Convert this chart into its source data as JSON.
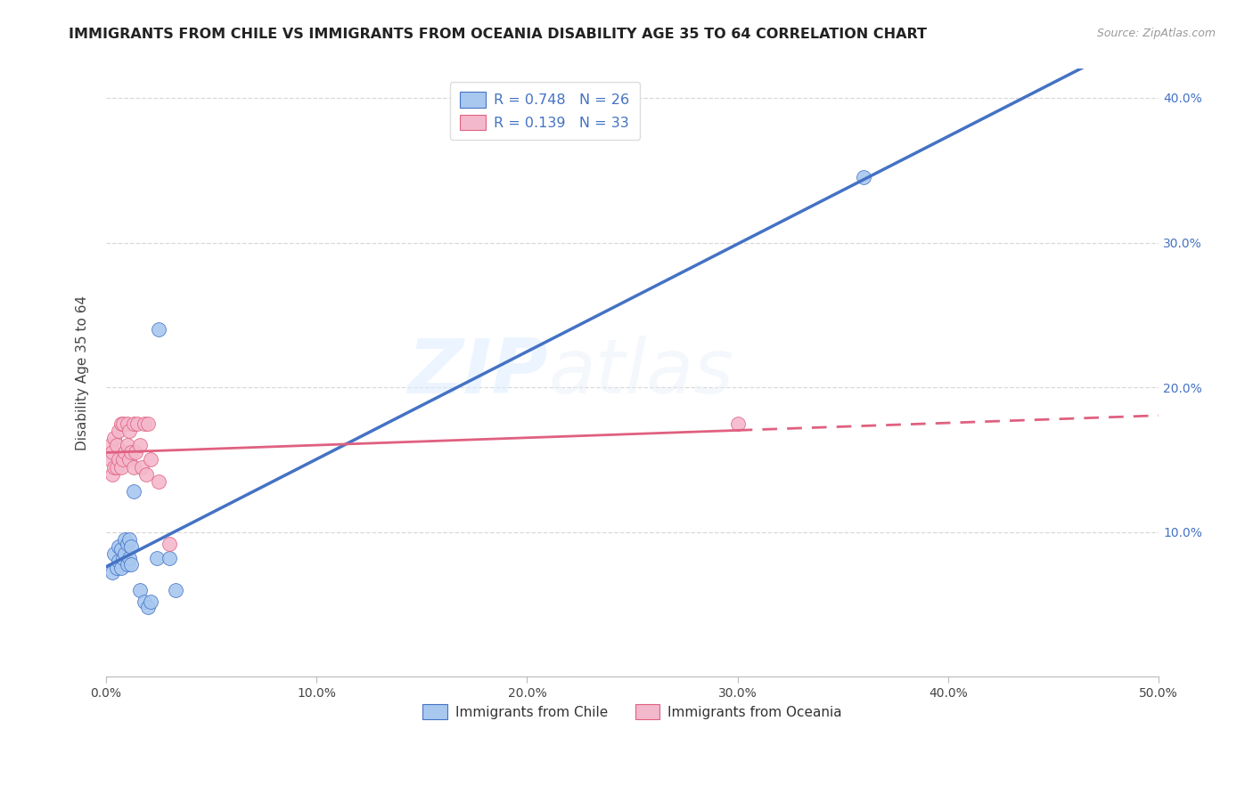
{
  "title": "IMMIGRANTS FROM CHILE VS IMMIGRANTS FROM OCEANIA DISABILITY AGE 35 TO 64 CORRELATION CHART",
  "source": "Source: ZipAtlas.com",
  "ylabel": "Disability Age 35 to 64",
  "xlim": [
    0.0,
    0.5
  ],
  "ylim": [
    0.0,
    0.42
  ],
  "xticks": [
    0.0,
    0.1,
    0.2,
    0.3,
    0.4,
    0.5
  ],
  "yticks": [
    0.0,
    0.1,
    0.2,
    0.3,
    0.4
  ],
  "xtick_labels": [
    "0.0%",
    "10.0%",
    "20.0%",
    "30.0%",
    "40.0%",
    "50.0%"
  ],
  "ytick_labels_right": [
    "",
    "10.0%",
    "20.0%",
    "30.0%",
    "40.0%"
  ],
  "legend_labels": [
    "Immigrants from Chile",
    "Immigrants from Oceania"
  ],
  "R_chile": 0.748,
  "N_chile": 26,
  "R_oceania": 0.139,
  "N_oceania": 33,
  "chile_color": "#a8c8f0",
  "oceania_color": "#f4b8cc",
  "chile_line_color": "#4472c4",
  "oceania_line_color": "#e06080",
  "watermark_zip": "ZIP",
  "watermark_atlas": "atlas",
  "background_color": "#ffffff",
  "grid_color": "#d8d8d8",
  "chile_points_x": [
    0.003,
    0.004,
    0.005,
    0.006,
    0.006,
    0.007,
    0.007,
    0.008,
    0.009,
    0.009,
    0.01,
    0.01,
    0.011,
    0.011,
    0.012,
    0.012,
    0.013,
    0.016,
    0.018,
    0.02,
    0.021,
    0.024,
    0.025,
    0.03,
    0.033,
    0.36
  ],
  "chile_points_y": [
    0.072,
    0.085,
    0.075,
    0.08,
    0.09,
    0.075,
    0.088,
    0.082,
    0.085,
    0.095,
    0.078,
    0.092,
    0.082,
    0.095,
    0.078,
    0.09,
    0.128,
    0.06,
    0.052,
    0.048,
    0.052,
    0.082,
    0.24,
    0.082,
    0.06,
    0.345
  ],
  "oceania_points_x": [
    0.002,
    0.002,
    0.003,
    0.003,
    0.004,
    0.004,
    0.005,
    0.005,
    0.006,
    0.006,
    0.007,
    0.007,
    0.008,
    0.008,
    0.009,
    0.01,
    0.01,
    0.011,
    0.011,
    0.012,
    0.013,
    0.013,
    0.014,
    0.015,
    0.016,
    0.017,
    0.018,
    0.019,
    0.02,
    0.021,
    0.025,
    0.03,
    0.3
  ],
  "oceania_points_y": [
    0.15,
    0.16,
    0.14,
    0.155,
    0.145,
    0.165,
    0.145,
    0.16,
    0.15,
    0.17,
    0.145,
    0.175,
    0.15,
    0.175,
    0.155,
    0.16,
    0.175,
    0.15,
    0.17,
    0.155,
    0.145,
    0.175,
    0.155,
    0.175,
    0.16,
    0.145,
    0.175,
    0.14,
    0.175,
    0.15,
    0.135,
    0.092,
    0.175
  ]
}
